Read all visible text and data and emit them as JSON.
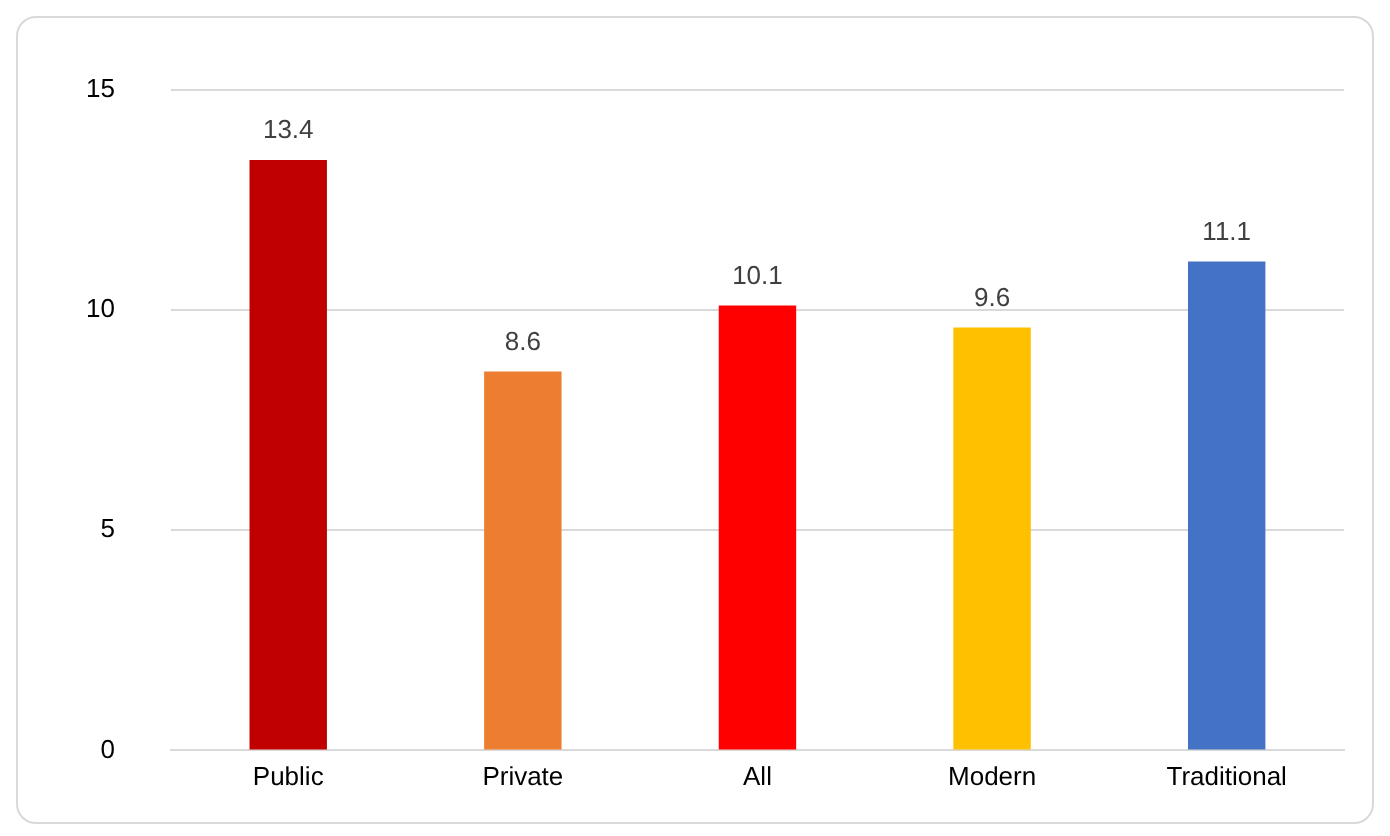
{
  "chart_data": {
    "type": "bar",
    "categories": [
      "Public",
      "Private",
      "All",
      "Modern",
      "Traditional"
    ],
    "values": [
      13.4,
      8.6,
      10.1,
      9.6,
      11.1
    ],
    "colors": [
      "#c00000",
      "#ed7d31",
      "#ff0000",
      "#ffc000",
      "#4472c4"
    ],
    "ylim": [
      0,
      15
    ],
    "yticks": [
      0,
      5,
      10,
      15
    ],
    "grid": "y",
    "data_labels": true,
    "legend": false
  }
}
